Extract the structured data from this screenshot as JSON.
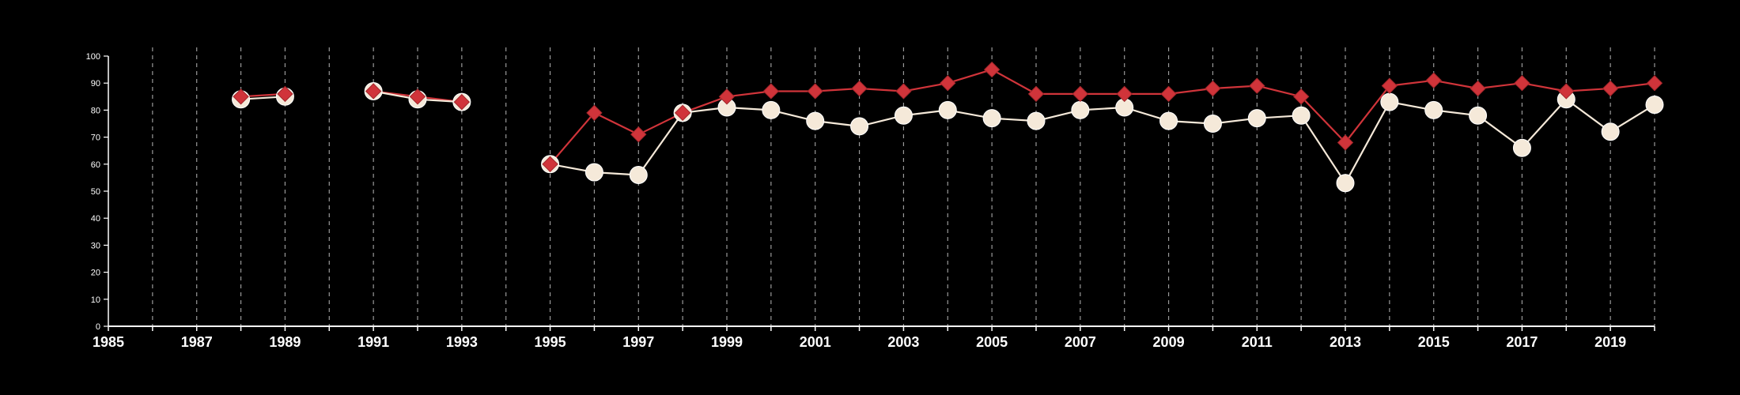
{
  "chart_data": {
    "type": "line",
    "title": "",
    "xlabel": "",
    "ylabel": "",
    "xlim": [
      1985,
      2020
    ],
    "ylim": [
      0,
      100
    ],
    "grid": "vertical dashed at every year",
    "x_tick_labels": [
      "1985",
      "1987",
      "1989",
      "1991",
      "1993",
      "1995",
      "1997",
      "1999",
      "2001",
      "2003",
      "2005",
      "2007",
      "2009",
      "2011",
      "2013",
      "2015",
      "2017",
      "2019"
    ],
    "y_tick_labels": [
      "0",
      "10",
      "20",
      "30",
      "40",
      "50",
      "60",
      "70",
      "80",
      "90",
      "100"
    ],
    "x": [
      1988,
      1989,
      1991,
      1992,
      1993,
      1995,
      1996,
      1997,
      1998,
      1999,
      2000,
      2001,
      2002,
      2003,
      2004,
      2005,
      2006,
      2007,
      2008,
      2009,
      2010,
      2011,
      2012,
      2013,
      2014,
      2015,
      2016,
      2017,
      2018,
      2019,
      2020
    ],
    "series": [
      {
        "marker": "diamond",
        "color": "#d0343a",
        "values": [
          85,
          86,
          87,
          85,
          83,
          60,
          79,
          71,
          79,
          85,
          87,
          87,
          88,
          87,
          90,
          95,
          86,
          86,
          86,
          86,
          88,
          89,
          85,
          68,
          89,
          91,
          88,
          90,
          87,
          88,
          90
        ]
      },
      {
        "marker": "circle",
        "color": "#f5e9d9",
        "values": [
          84,
          85,
          87,
          84,
          83,
          60,
          57,
          56,
          79,
          81,
          80,
          76,
          74,
          78,
          80,
          77,
          76,
          80,
          81,
          76,
          75,
          77,
          78,
          53,
          83,
          80,
          78,
          66,
          84,
          72,
          82
        ]
      }
    ]
  }
}
